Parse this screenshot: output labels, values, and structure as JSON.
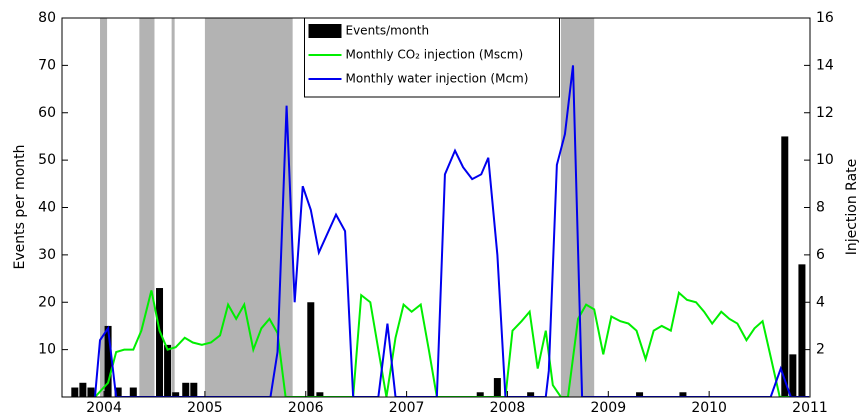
{
  "chart_data": {
    "type": "combo",
    "ylabel": "Events per month",
    "y2label": "Injection Rate",
    "xlim": [
      2003.583,
      2011
    ],
    "xticks": [
      2004,
      2005,
      2006,
      2007,
      2008,
      2009,
      2010,
      2011
    ],
    "ylim": [
      0,
      80
    ],
    "yticks": [
      10,
      20,
      30,
      40,
      50,
      60,
      70,
      80
    ],
    "y2lim": [
      0,
      16
    ],
    "y2ticks": [
      2,
      4,
      6,
      8,
      10,
      12,
      14,
      16
    ],
    "legend": "upper-center",
    "shaded_color": "#b3b3b3",
    "shaded_periods": [
      [
        2003.96,
        2004.03
      ],
      [
        2004.35,
        2004.5
      ],
      [
        2004.67,
        2004.7
      ],
      [
        2005.0,
        2005.87
      ],
      [
        2008.53,
        2008.86
      ]
    ],
    "series": [
      {
        "name": "Events/month",
        "type": "bar",
        "color": "#000000",
        "x": [
          2003.71,
          2003.79,
          2003.87,
          2004.04,
          2004.14,
          2004.29,
          2004.55,
          2004.63,
          2004.71,
          2004.81,
          2004.89,
          2006.05,
          2006.14,
          2007.73,
          2007.9,
          2008.23,
          2009.31,
          2009.74,
          2010.75,
          2010.83,
          2010.92
        ],
        "values": [
          2,
          3,
          2,
          15,
          2,
          2,
          23,
          11,
          1,
          3,
          3,
          20,
          1,
          1,
          4,
          1,
          1,
          1,
          55,
          9,
          28
        ]
      },
      {
        "name": "Monthly CO₂  injection (Mscm)",
        "type": "line",
        "axis": "y2",
        "color": "#00ee00",
        "x": [
          2003.91,
          2004.04,
          2004.12,
          2004.2,
          2004.29,
          2004.37,
          2004.47,
          2004.55,
          2004.63,
          2004.71,
          2004.8,
          2004.88,
          2004.97,
          2005.06,
          2005.15,
          2005.23,
          2005.31,
          2005.39,
          2005.48,
          2005.56,
          2005.64,
          2005.72,
          2005.8,
          2006.47,
          2006.55,
          2006.64,
          2006.72,
          2006.8,
          2006.89,
          2006.97,
          2007.05,
          2007.14,
          2007.22,
          2007.3,
          2007.98,
          2008.05,
          2008.14,
          2008.22,
          2008.3,
          2008.38,
          2008.45,
          2008.53,
          2008.6,
          2008.7,
          2008.78,
          2008.86,
          2008.95,
          2009.03,
          2009.12,
          2009.2,
          2009.28,
          2009.37,
          2009.45,
          2009.53,
          2009.62,
          2009.7,
          2009.78,
          2009.87,
          2009.95,
          2010.03,
          2010.12,
          2010.2,
          2010.28,
          2010.37,
          2010.45,
          2010.53,
          2010.61,
          2010.7,
          2010.99
        ],
        "values": [
          0,
          0.6,
          1.9,
          2.0,
          2.0,
          2.8,
          4.5,
          2.8,
          2.0,
          2.1,
          2.5,
          2.3,
          2.2,
          2.3,
          2.6,
          3.9,
          3.3,
          3.9,
          2.0,
          2.9,
          3.3,
          2.7,
          0,
          0,
          4.3,
          4.0,
          2.0,
          0,
          2.5,
          3.9,
          3.6,
          3.9,
          2.0,
          0,
          0,
          2.8,
          3.2,
          3.6,
          1.2,
          2.8,
          0.5,
          0,
          0,
          3.3,
          3.9,
          3.7,
          1.8,
          3.4,
          3.2,
          3.1,
          2.8,
          1.6,
          2.8,
          3.0,
          2.8,
          4.4,
          4.1,
          4.0,
          3.6,
          3.1,
          3.6,
          3.3,
          3.1,
          2.4,
          2.9,
          3.2,
          1.7,
          0,
          0
        ]
      },
      {
        "name": "Monthly water injection (Mcm)",
        "type": "line",
        "axis": "y2",
        "color": "#0000ee",
        "x": [
          2003.91,
          2003.96,
          2004.04,
          2004.12,
          2005.65,
          2005.72,
          2005.81,
          2005.89,
          2005.97,
          2006.05,
          2006.13,
          2006.3,
          2006.39,
          2006.47,
          2006.72,
          2006.81,
          2006.89,
          2007.3,
          2007.38,
          2007.48,
          2007.56,
          2007.65,
          2007.74,
          2007.81,
          2007.9,
          2007.98,
          2008.38,
          2008.41,
          2008.49,
          2008.57,
          2008.65,
          2008.74,
          2010.61,
          2010.71,
          2010.81,
          2010.99
        ],
        "values": [
          0,
          2.4,
          2.9,
          0,
          0,
          1.9,
          12.3,
          4.0,
          8.9,
          7.9,
          6.1,
          7.7,
          7.0,
          0,
          0,
          3.1,
          0,
          0,
          9.4,
          10.4,
          9.7,
          9.2,
          9.4,
          10.1,
          6.0,
          0,
          0,
          1.1,
          9.8,
          11.1,
          14.0,
          0,
          0,
          1.2,
          0,
          0
        ]
      }
    ]
  }
}
